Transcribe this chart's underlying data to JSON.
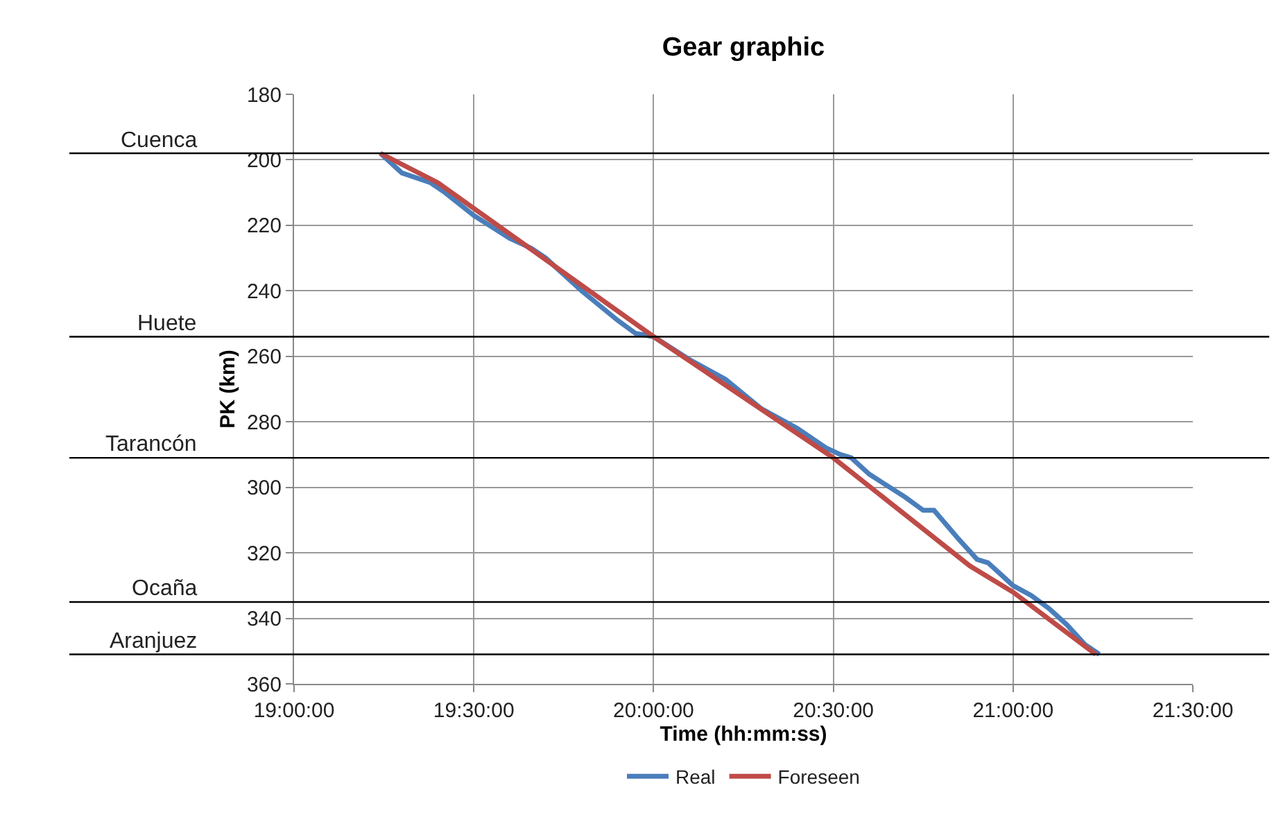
{
  "chart_data": {
    "type": "line",
    "title": "Gear graphic",
    "xlabel": "Time (hh:mm:ss)",
    "ylabel": "PK (km)",
    "xlim": [
      19,
      21.5
    ],
    "xticks": [
      {
        "value": 19,
        "label": "19:00:00"
      },
      {
        "value": 19.5,
        "label": "19:30:00"
      },
      {
        "value": 20,
        "label": "20:00:00"
      },
      {
        "value": 20.5,
        "label": "20:30:00"
      },
      {
        "value": 21,
        "label": "21:00:00"
      },
      {
        "value": 21.5,
        "label": "21:30:00"
      }
    ],
    "ylim": [
      360,
      180
    ],
    "yticks": [
      180,
      200,
      220,
      240,
      260,
      280,
      300,
      320,
      340,
      360
    ],
    "grid": true,
    "legend": "bottom",
    "marker": "none",
    "line_style": "solid",
    "series": [
      {
        "name": "Real",
        "color": "#4a7ebb",
        "x": [
          19.24,
          19.3,
          19.38,
          19.42,
          19.5,
          19.6,
          19.66,
          19.7,
          19.8,
          19.9,
          19.95,
          20.0,
          20.1,
          20.2,
          20.3,
          20.4,
          20.48,
          20.52,
          20.55,
          20.6,
          20.7,
          20.75,
          20.78,
          20.85,
          20.9,
          20.93,
          20.97,
          21.0,
          21.05,
          21.1,
          21.15,
          21.2,
          21.24
        ],
        "values": [
          198,
          204,
          207,
          210,
          217,
          224,
          227,
          230,
          240,
          249,
          253,
          254,
          261,
          267,
          276,
          282,
          288,
          290,
          291,
          296,
          303,
          307,
          307,
          316,
          322,
          323,
          327,
          330,
          333,
          337,
          342,
          348,
          351
        ]
      },
      {
        "name": "Foreseen",
        "color": "#be4b48",
        "x": [
          19.24,
          19.4,
          20.0,
          20.5,
          20.88,
          21.0,
          21.23
        ],
        "values": [
          198,
          207,
          254,
          291,
          324,
          332,
          351
        ]
      }
    ],
    "ref_lines": [
      {
        "axis": "y",
        "value": 198,
        "label": "Cuenca",
        "color": "#000000"
      },
      {
        "axis": "y",
        "value": 254,
        "label": "Huete",
        "color": "#000000"
      },
      {
        "axis": "y",
        "value": 291,
        "label": "Tarancón",
        "color": "#000000"
      },
      {
        "axis": "y",
        "value": 335,
        "label": "Ocaña",
        "color": "#000000"
      },
      {
        "axis": "y",
        "value": 351,
        "label": "Aranjuez",
        "color": "#000000"
      }
    ]
  }
}
